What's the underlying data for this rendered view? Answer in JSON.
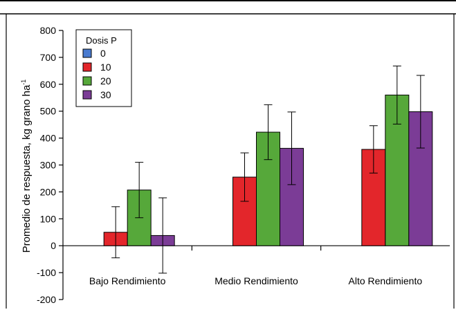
{
  "chart_data": {
    "type": "bar",
    "title": "",
    "xlabel": "",
    "ylabel": "Promedio de respuesta, kg grano ha",
    "ylabel_superscript": "-1",
    "ylim": [
      -200,
      800
    ],
    "yticks": [
      -200,
      -100,
      0,
      100,
      200,
      300,
      400,
      500,
      600,
      700,
      800
    ],
    "grid": false,
    "legend_position": "top-left",
    "legend_title": "Dosis P",
    "categories": [
      "Bajo Rendimiento",
      "Medio Rendimiento",
      "Alto Rendimiento"
    ],
    "series": [
      {
        "name": "0",
        "color": "#4a7bd0",
        "values": [
          0,
          0,
          0
        ],
        "err": [
          0,
          0,
          0
        ]
      },
      {
        "name": "10",
        "color": "#e3262b",
        "values": [
          50,
          255,
          358
        ],
        "err": [
          95,
          90,
          88
        ]
      },
      {
        "name": "20",
        "color": "#56a83a",
        "values": [
          207,
          422,
          560
        ],
        "err": [
          103,
          102,
          108
        ]
      },
      {
        "name": "30",
        "color": "#7b3c96",
        "values": [
          38,
          362,
          498
        ],
        "err": [
          140,
          135,
          135
        ]
      }
    ]
  }
}
